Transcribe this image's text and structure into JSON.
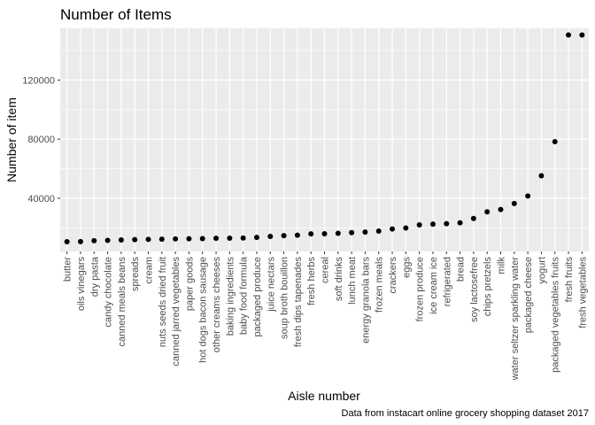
{
  "chart_data": {
    "type": "scatter",
    "title": "Number of Items",
    "xlabel": "Aisle number",
    "ylabel": "Number of item",
    "caption": "Data from instacart online grocery shopping dataset 2017",
    "yticks": [
      40000,
      80000,
      120000
    ],
    "ytick_labels": [
      "40000",
      "80000",
      "120000"
    ],
    "ylim": [
      4000,
      155000
    ],
    "grid": true,
    "legend": "none",
    "colors": {
      "panel": "#ebebeb",
      "grid": "#ffffff",
      "point": "#000000"
    },
    "categories": [
      "butter",
      "oils vinegars",
      "dry pasta",
      "candy chocolate",
      "canned meals beans",
      "spreads",
      "cream",
      "nuts seeds dried fruit",
      "canned jarred vegetables",
      "paper goods",
      "hot dogs bacon sausage",
      "other creams cheeses",
      "baking ingredients",
      "baby food formula",
      "packaged produce",
      "juice nectars",
      "soup broth bouillon",
      "fresh dips tapenades",
      "fresh herbs",
      "cereal",
      "soft drinks",
      "lunch meat",
      "energy granola bars",
      "frozen meals",
      "crackers",
      "eggs",
      "frozen produce",
      "ice cream ice",
      "refrigerated",
      "bread",
      "soy lactosefree",
      "chips pretzels",
      "milk",
      "water seltzer sparkling water",
      "packaged cheese",
      "yogurt",
      "packaged vegetables fruits",
      "fresh fruits",
      "fresh vegetables"
    ],
    "values": [
      10600,
      10700,
      11300,
      11500,
      11800,
      12000,
      12200,
      12300,
      12500,
      12600,
      12700,
      12900,
      13000,
      13100,
      13500,
      14200,
      14700,
      15000,
      15900,
      16000,
      16300,
      16700,
      17100,
      17800,
      19200,
      19900,
      22000,
      22500,
      22800,
      23400,
      26300,
      30800,
      32400,
      36400,
      41500,
      55200,
      78300,
      150500,
      150500
    ]
  }
}
